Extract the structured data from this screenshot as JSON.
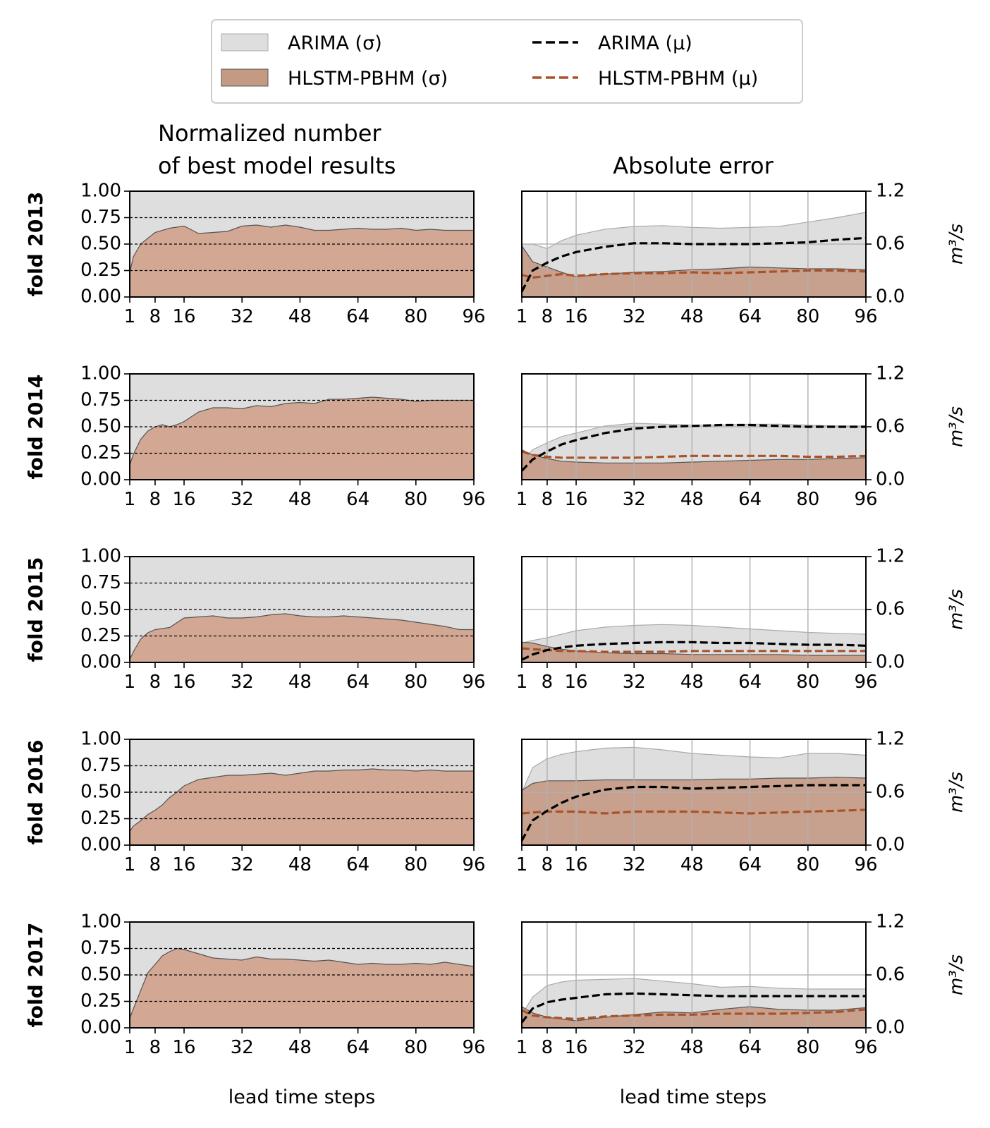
{
  "colors": {
    "arima_band": "#dedede",
    "arima_band_edge": "#aaaaaa",
    "hlstm_band": "#c49a85",
    "hlstm_band_left": "#d2a894",
    "hlstm_edge": "#555555",
    "arima_mean": "#000000",
    "hlstm_mean": "#a9532b"
  },
  "legend": [
    {
      "label": "ARIMA (σ)",
      "kind": "patch",
      "color": "#dedede"
    },
    {
      "label": "ARIMA (μ)",
      "kind": "dash",
      "color": "#000000"
    },
    {
      "label": "HLSTM-PBHM (σ)",
      "kind": "patch",
      "color": "#c49a85"
    },
    {
      "label": "HLSTM-PBHM (μ)",
      "kind": "dash",
      "color": "#a9532b"
    }
  ],
  "column_titles": {
    "left_line1": "Normalized number",
    "left_line2": "of best model results",
    "right": "Absolute error"
  },
  "x_label": "lead time steps",
  "right_unit_label": "m³/s",
  "folds": [
    "fold 2013",
    "fold 2014",
    "fold 2015",
    "fold 2016",
    "fold 2017"
  ],
  "chart_data": [
    {
      "type": "area",
      "panel": "left",
      "title": "Normalized number of best model results",
      "xlabel": "lead time steps",
      "x_ticks": [
        1,
        8,
        16,
        32,
        48,
        64,
        80,
        96
      ],
      "xlim": [
        1,
        96
      ],
      "y_ticks": [
        0.0,
        0.25,
        0.5,
        0.75,
        1.0
      ],
      "ylim": [
        0,
        1
      ],
      "grid": "horizontal dashed at 0.25, 0.50, 0.75",
      "series": [
        {
          "fold": "fold 2013",
          "name": "HLSTM-PBHM",
          "x": [
            1,
            2,
            4,
            8,
            12,
            16,
            20,
            24,
            28,
            32,
            36,
            40,
            44,
            48,
            52,
            56,
            60,
            64,
            68,
            72,
            76,
            80,
            84,
            88,
            92,
            96
          ],
          "values": [
            0.23,
            0.38,
            0.5,
            0.61,
            0.65,
            0.67,
            0.6,
            0.61,
            0.62,
            0.67,
            0.68,
            0.66,
            0.68,
            0.66,
            0.63,
            0.63,
            0.64,
            0.65,
            0.64,
            0.64,
            0.65,
            0.63,
            0.64,
            0.63,
            0.63,
            0.63
          ]
        },
        {
          "fold": "fold 2014",
          "name": "HLSTM-PBHM",
          "x": [
            1,
            2,
            4,
            6,
            8,
            10,
            12,
            14,
            16,
            20,
            24,
            28,
            32,
            36,
            40,
            44,
            48,
            52,
            56,
            60,
            64,
            68,
            72,
            76,
            80,
            84,
            88,
            92,
            96
          ],
          "values": [
            0.14,
            0.24,
            0.38,
            0.46,
            0.5,
            0.52,
            0.5,
            0.52,
            0.55,
            0.64,
            0.68,
            0.68,
            0.67,
            0.7,
            0.69,
            0.72,
            0.73,
            0.72,
            0.76,
            0.76,
            0.77,
            0.78,
            0.77,
            0.76,
            0.74,
            0.75,
            0.75,
            0.75,
            0.75
          ]
        },
        {
          "fold": "fold 2015",
          "name": "HLSTM-PBHM",
          "x": [
            1,
            2,
            4,
            6,
            8,
            12,
            16,
            20,
            24,
            28,
            32,
            36,
            40,
            44,
            48,
            52,
            56,
            60,
            64,
            68,
            72,
            76,
            80,
            84,
            88,
            92,
            96
          ],
          "values": [
            0.03,
            0.1,
            0.22,
            0.28,
            0.31,
            0.33,
            0.42,
            0.43,
            0.44,
            0.42,
            0.42,
            0.43,
            0.45,
            0.46,
            0.44,
            0.43,
            0.43,
            0.44,
            0.43,
            0.42,
            0.41,
            0.4,
            0.38,
            0.36,
            0.34,
            0.31,
            0.31
          ]
        },
        {
          "fold": "fold 2016",
          "name": "HLSTM-PBHM",
          "x": [
            1,
            2,
            4,
            6,
            8,
            10,
            12,
            14,
            16,
            20,
            24,
            28,
            32,
            36,
            40,
            44,
            48,
            52,
            56,
            60,
            64,
            68,
            72,
            76,
            80,
            84,
            88,
            92,
            96
          ],
          "values": [
            0.13,
            0.18,
            0.23,
            0.29,
            0.33,
            0.38,
            0.45,
            0.5,
            0.56,
            0.62,
            0.64,
            0.66,
            0.66,
            0.67,
            0.68,
            0.66,
            0.68,
            0.7,
            0.7,
            0.71,
            0.71,
            0.72,
            0.71,
            0.71,
            0.7,
            0.71,
            0.7,
            0.7,
            0.7
          ]
        },
        {
          "fold": "fold 2017",
          "name": "HLSTM-PBHM",
          "x": [
            1,
            2,
            4,
            6,
            8,
            10,
            12,
            14,
            16,
            20,
            24,
            28,
            32,
            36,
            40,
            44,
            48,
            52,
            56,
            60,
            64,
            68,
            72,
            76,
            80,
            84,
            88,
            92,
            96
          ],
          "values": [
            0.09,
            0.18,
            0.35,
            0.52,
            0.6,
            0.68,
            0.72,
            0.75,
            0.74,
            0.7,
            0.66,
            0.65,
            0.64,
            0.67,
            0.65,
            0.65,
            0.64,
            0.63,
            0.64,
            0.62,
            0.6,
            0.61,
            0.6,
            0.6,
            0.61,
            0.6,
            0.62,
            0.6,
            0.58
          ]
        }
      ]
    },
    {
      "type": "line",
      "panel": "right",
      "title": "Absolute error",
      "xlabel": "lead time steps",
      "ylabel": "m³/s",
      "x_ticks": [
        1,
        8,
        16,
        32,
        48,
        64,
        80,
        96
      ],
      "xlim": [
        1,
        96
      ],
      "y_ticks": [
        0.0,
        0.6,
        1.2
      ],
      "ylim": [
        0,
        1.2
      ],
      "grid": "on",
      "x": [
        1,
        4,
        8,
        12,
        16,
        24,
        32,
        40,
        48,
        56,
        64,
        72,
        80,
        88,
        96
      ],
      "folds": [
        {
          "fold": "fold 2013",
          "arima_mean": [
            0.06,
            0.3,
            0.39,
            0.46,
            0.51,
            0.57,
            0.61,
            0.61,
            0.6,
            0.6,
            0.6,
            0.61,
            0.62,
            0.65,
            0.67
          ],
          "arima_sigma": [
            0.6,
            0.6,
            0.55,
            0.64,
            0.7,
            0.77,
            0.8,
            0.81,
            0.79,
            0.78,
            0.79,
            0.8,
            0.85,
            0.9,
            0.96
          ],
          "hlstm_mean": [
            0.25,
            0.22,
            0.24,
            0.26,
            0.24,
            0.26,
            0.27,
            0.27,
            0.28,
            0.27,
            0.28,
            0.29,
            0.3,
            0.3,
            0.29
          ],
          "hlstm_sigma": [
            0.58,
            0.4,
            0.34,
            0.28,
            0.23,
            0.26,
            0.28,
            0.29,
            0.31,
            0.32,
            0.34,
            0.33,
            0.32,
            0.32,
            0.31
          ]
        },
        {
          "fold": "fold 2014",
          "arima_mean": [
            0.1,
            0.23,
            0.32,
            0.4,
            0.45,
            0.53,
            0.58,
            0.6,
            0.61,
            0.62,
            0.62,
            0.61,
            0.6,
            0.6,
            0.6
          ],
          "arima_sigma": [
            0.2,
            0.34,
            0.42,
            0.49,
            0.53,
            0.61,
            0.64,
            0.63,
            0.62,
            0.62,
            0.63,
            0.63,
            0.62,
            0.61,
            0.61
          ],
          "hlstm_mean": [
            0.32,
            0.28,
            0.26,
            0.25,
            0.25,
            0.25,
            0.25,
            0.26,
            0.27,
            0.27,
            0.27,
            0.27,
            0.26,
            0.26,
            0.27
          ],
          "hlstm_sigma": [
            0.34,
            0.28,
            0.24,
            0.21,
            0.2,
            0.19,
            0.19,
            0.19,
            0.2,
            0.21,
            0.22,
            0.23,
            0.23,
            0.24,
            0.25
          ]
        },
        {
          "fold": "fold 2015",
          "arima_mean": [
            0.03,
            0.09,
            0.14,
            0.17,
            0.19,
            0.21,
            0.22,
            0.23,
            0.23,
            0.22,
            0.22,
            0.21,
            0.2,
            0.2,
            0.19
          ],
          "arima_sigma": [
            0.22,
            0.25,
            0.28,
            0.32,
            0.36,
            0.4,
            0.42,
            0.43,
            0.42,
            0.4,
            0.38,
            0.36,
            0.34,
            0.33,
            0.32
          ],
          "hlstm_mean": [
            0.16,
            0.15,
            0.14,
            0.13,
            0.13,
            0.12,
            0.12,
            0.12,
            0.13,
            0.13,
            0.13,
            0.13,
            0.13,
            0.13,
            0.13
          ],
          "hlstm_sigma": [
            0.23,
            0.22,
            0.18,
            0.15,
            0.13,
            0.11,
            0.1,
            0.1,
            0.09,
            0.09,
            0.09,
            0.09,
            0.08,
            0.08,
            0.08
          ]
        },
        {
          "fold": "fold 2016",
          "arima_mean": [
            0.05,
            0.28,
            0.39,
            0.48,
            0.55,
            0.63,
            0.66,
            0.66,
            0.64,
            0.65,
            0.66,
            0.67,
            0.68,
            0.68,
            0.68
          ],
          "arima_sigma": [
            0.6,
            0.88,
            0.98,
            1.03,
            1.06,
            1.1,
            1.11,
            1.08,
            1.04,
            1.02,
            1.0,
            0.99,
            1.04,
            1.04,
            1.02
          ],
          "hlstm_mean": [
            0.36,
            0.37,
            0.38,
            0.38,
            0.38,
            0.36,
            0.38,
            0.38,
            0.38,
            0.37,
            0.36,
            0.37,
            0.38,
            0.39,
            0.4
          ],
          "hlstm_sigma": [
            0.62,
            0.7,
            0.73,
            0.73,
            0.73,
            0.74,
            0.74,
            0.74,
            0.74,
            0.75,
            0.75,
            0.76,
            0.76,
            0.77,
            0.76
          ]
        },
        {
          "fold": "fold 2017",
          "arima_mean": [
            0.06,
            0.22,
            0.29,
            0.32,
            0.34,
            0.38,
            0.39,
            0.38,
            0.37,
            0.36,
            0.36,
            0.36,
            0.36,
            0.36,
            0.36
          ],
          "arima_sigma": [
            0.15,
            0.35,
            0.48,
            0.52,
            0.54,
            0.55,
            0.56,
            0.53,
            0.5,
            0.46,
            0.47,
            0.45,
            0.44,
            0.44,
            0.44
          ],
          "hlstm_mean": [
            0.2,
            0.14,
            0.12,
            0.11,
            0.1,
            0.13,
            0.14,
            0.15,
            0.15,
            0.16,
            0.16,
            0.16,
            0.17,
            0.18,
            0.21
          ],
          "hlstm_sigma": [
            0.24,
            0.17,
            0.12,
            0.1,
            0.08,
            0.12,
            0.15,
            0.18,
            0.17,
            0.21,
            0.24,
            0.21,
            0.2,
            0.2,
            0.23
          ]
        }
      ]
    }
  ]
}
